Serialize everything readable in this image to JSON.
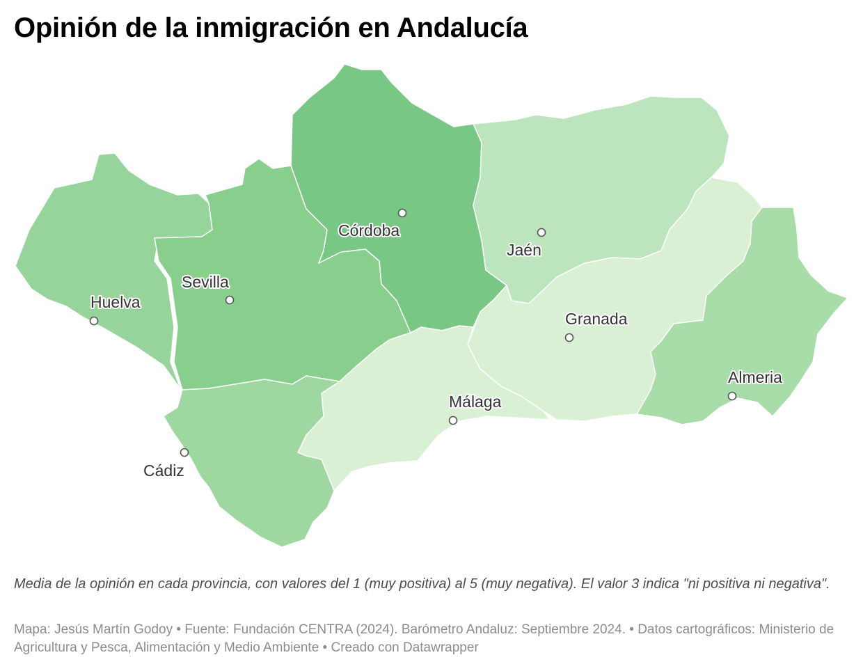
{
  "title": "Opinión de la inmigración en Andalucía",
  "description": "Media de la opinión en cada provincia, con valores del 1 (muy positiva) al 5 (muy negativa). El valor 3 indica \"ni positiva ni negativa\".",
  "footer": "Mapa: Jesús Martín Godoy • Fuente: Fundación CENTRA (2024). Barómetro Andaluz: Septiembre 2024. • Datos cartográficos: Ministerio de Agricultura y Pesca, Alimentación y Medio Ambiente  • Creado con Datawrapper",
  "provinces": [
    {
      "name": "Huelva",
      "label": "Huelva",
      "fill": "#96d49b"
    },
    {
      "name": "Sevilla",
      "label": "Sevilla",
      "fill": "#88cf8d"
    },
    {
      "name": "Córdoba",
      "label": "Córdoba",
      "fill": "#79c785"
    },
    {
      "name": "Jaén",
      "label": "Jaén",
      "fill": "#bce5bd"
    },
    {
      "name": "Granada",
      "label": "Granada",
      "fill": "#d9f0d5"
    },
    {
      "name": "Almería",
      "label": "Almeria",
      "fill": "#a8dca8"
    },
    {
      "name": "Málaga",
      "label": "Málaga",
      "fill": "#d9f0d5"
    },
    {
      "name": "Cádiz",
      "label": "Cádiz",
      "fill": "#9ed8a0"
    }
  ]
}
